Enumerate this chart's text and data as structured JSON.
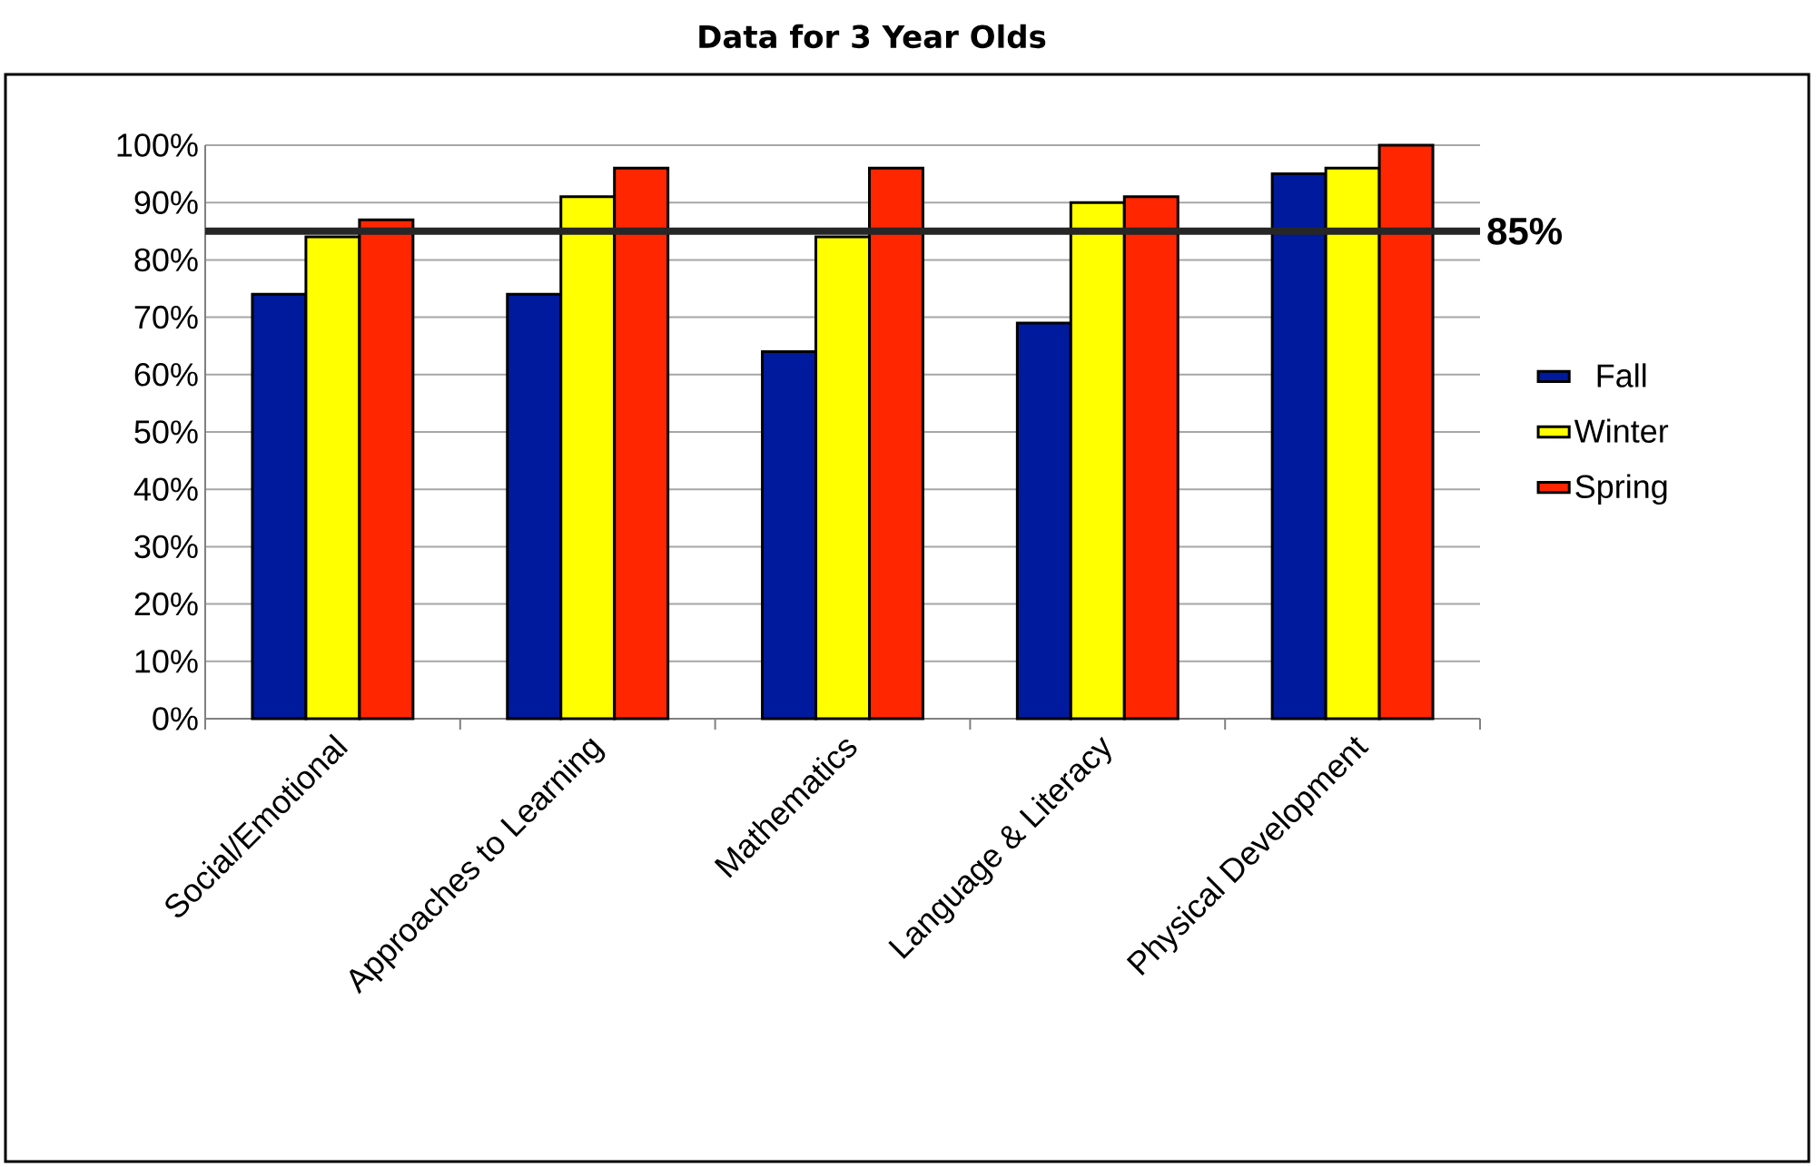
{
  "chart_data": {
    "type": "bar",
    "title": "Data for 3 Year Olds",
    "categories": [
      "Social/Emotional",
      "Approaches to Learning",
      "Mathematics",
      "Language & Literacy",
      "Physical Development"
    ],
    "series": [
      {
        "name": "Fall",
        "color": "#001a9e",
        "values": [
          74,
          74,
          64,
          69,
          95
        ]
      },
      {
        "name": "Winter",
        "color": "#ffff00",
        "values": [
          84,
          91,
          84,
          90,
          96
        ]
      },
      {
        "name": "Spring",
        "color": "#ff2600",
        "values": [
          87,
          96,
          96,
          91,
          100
        ]
      }
    ],
    "ylim": [
      0,
      100
    ],
    "yticks": [
      {
        "value": 0,
        "label": "0%"
      },
      {
        "value": 10,
        "label": "10%"
      },
      {
        "value": 20,
        "label": "20%"
      },
      {
        "value": 30,
        "label": "30%"
      },
      {
        "value": 40,
        "label": "40%"
      },
      {
        "value": 50,
        "label": "50%"
      },
      {
        "value": 60,
        "label": "60%"
      },
      {
        "value": 70,
        "label": "70%"
      },
      {
        "value": 80,
        "label": "80%"
      },
      {
        "value": 90,
        "label": "90%"
      },
      {
        "value": 100,
        "label": "100%"
      }
    ],
    "ref_lines": [
      {
        "axis": "y",
        "value": 85,
        "label": "85%",
        "color": "#262626"
      }
    ],
    "grid": "y",
    "legend": "right"
  }
}
